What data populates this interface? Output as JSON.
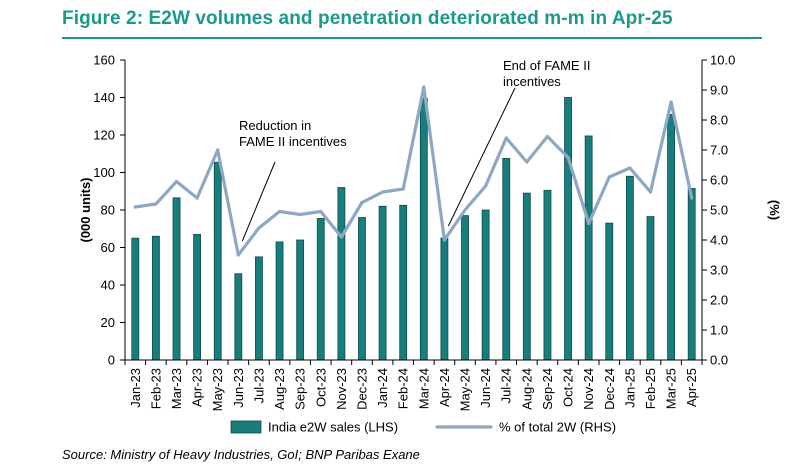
{
  "figure": {
    "title": "Figure 2: E2W volumes and penetration deteriorated m-m in Apr-25",
    "source": "Source: Ministry of Heavy Industries, GoI; BNP Paribas Exane"
  },
  "colors": {
    "title": "#1a9a8c",
    "bar_fill": "#177e7b",
    "bar_stroke": "#0d4d4b",
    "line": "#8ea8c3"
  },
  "chart_data": {
    "type": "bar",
    "title": "",
    "categories": [
      "Jan-23",
      "Feb-23",
      "Mar-23",
      "Apr-23",
      "May-23",
      "Jun-23",
      "Jul-23",
      "Aug-23",
      "Sep-23",
      "Oct-23",
      "Nov-23",
      "Dec-23",
      "Jan-24",
      "Feb-24",
      "Mar-24",
      "Apr-24",
      "May-24",
      "Jun-24",
      "Jul-24",
      "Aug-24",
      "Sep-24",
      "Oct-24",
      "Nov-24",
      "Dec-24",
      "Jan-25",
      "Feb-25",
      "Mar-25",
      "Apr-25"
    ],
    "series": [
      {
        "name": "India e2W sales (LHS)",
        "type": "bar",
        "axis": "left",
        "values": [
          65,
          66,
          86.5,
          67,
          105.5,
          46,
          55,
          63,
          64,
          75.5,
          92,
          76,
          82,
          82.5,
          139.5,
          65,
          77,
          80,
          107.5,
          89,
          90.5,
          140,
          119.5,
          73,
          98,
          76.5,
          131,
          91.5
        ]
      },
      {
        "name": "% of total 2W (RHS)",
        "type": "line",
        "axis": "right",
        "values": [
          5.1,
          5.2,
          5.95,
          5.4,
          7.0,
          3.5,
          4.4,
          4.95,
          4.85,
          4.95,
          4.1,
          5.25,
          5.6,
          5.7,
          9.1,
          4.0,
          5.0,
          5.8,
          7.4,
          6.6,
          7.45,
          6.75,
          4.55,
          6.1,
          6.4,
          5.6,
          8.6,
          5.4
        ]
      }
    ],
    "ylabel": "(000 units)",
    "ylabel_right": "(%)",
    "ylim": [
      0,
      160
    ],
    "ylim_right": [
      0,
      10
    ],
    "yticks": [
      "0",
      "20",
      "40",
      "60",
      "80",
      "100",
      "120",
      "140",
      "160"
    ],
    "yticks_right": [
      "0.0",
      "1.0",
      "2.0",
      "3.0",
      "4.0",
      "5.0",
      "6.0",
      "7.0",
      "8.0",
      "9.0",
      "10.0"
    ],
    "grid": false,
    "legend_position": "bottom",
    "annotations": [
      {
        "id": "fame-reduction",
        "lines": [
          "Reduction in",
          "FAME II incentives"
        ],
        "target_category": "Jun-23"
      },
      {
        "id": "fame-end",
        "lines": [
          "End of FAME II",
          "incentives"
        ],
        "target_category": "Apr-24"
      }
    ]
  }
}
